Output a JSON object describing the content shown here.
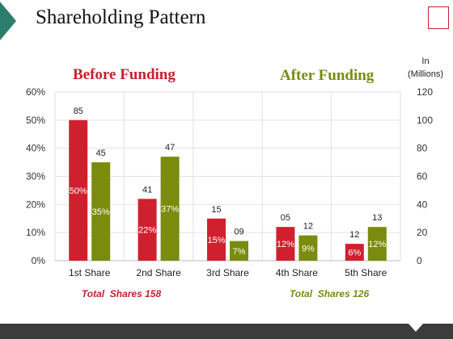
{
  "slide": {
    "title": "Shareholding Pattern",
    "before_heading": "Before Funding",
    "after_heading": "After Funding",
    "unit_line1": "In",
    "unit_line2": "(Millions)",
    "colors": {
      "accent_red": "#c8202f",
      "accent_olive": "#7a8c0e",
      "corner_teal": "#2d7d6f",
      "footer": "#3c3c3c"
    }
  },
  "chart_data": {
    "type": "bar",
    "categories": [
      "1st Share",
      "2nd Share",
      "3rd Share",
      "4th Share",
      "5th Share"
    ],
    "series": [
      {
        "color": "#d0202f",
        "percent_values": [
          50,
          22,
          15,
          12,
          6
        ],
        "percent_labels": [
          "50%",
          "22%",
          "15%",
          "12%",
          "6%"
        ],
        "count_labels": [
          "85",
          "41",
          "15",
          "05",
          "12"
        ]
      },
      {
        "color": "#7a8c0e",
        "percent_values": [
          35,
          37,
          7,
          9,
          12
        ],
        "percent_labels": [
          "35%",
          "37%",
          "7%",
          "9%",
          "12%"
        ],
        "count_labels": [
          "45",
          "47",
          "09",
          "12",
          "13"
        ]
      }
    ],
    "y_left": {
      "ticks": [
        "0%",
        "10%",
        "20%",
        "30%",
        "40%",
        "50%",
        "60%"
      ],
      "ylim": [
        0,
        60
      ]
    },
    "y_right": {
      "ticks": [
        "0",
        "20",
        "40",
        "60",
        "80",
        "100",
        "120"
      ],
      "ylim": [
        0,
        120
      ]
    },
    "grid": true,
    "totals": [
      {
        "label": "Total  Shares 158",
        "color": "#c8202f"
      },
      {
        "label": "Total  Shares 126",
        "color": "#7a8c0e"
      }
    ]
  }
}
